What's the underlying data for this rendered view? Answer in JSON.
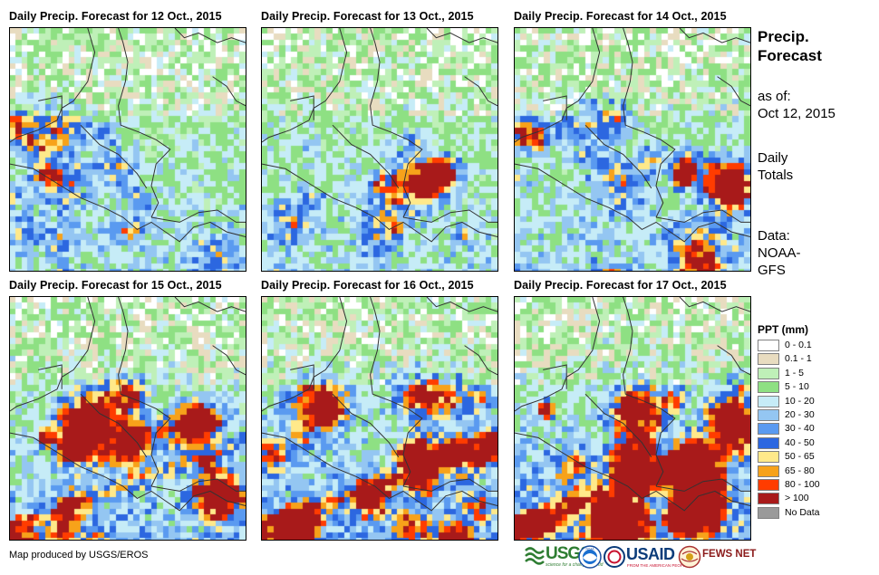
{
  "panels": [
    {
      "title": "Daily Precip. Forecast for 12 Oct., 2015",
      "intensity": 0.25,
      "seed": 12
    },
    {
      "title": "Daily Precip. Forecast for 13 Oct., 2015",
      "intensity": 0.2,
      "seed": 13
    },
    {
      "title": "Daily Precip. Forecast for 14 Oct., 2015",
      "intensity": 0.4,
      "seed": 14
    },
    {
      "title": "Daily Precip. Forecast for 15 Oct., 2015",
      "intensity": 0.6,
      "seed": 15
    },
    {
      "title": "Daily Precip. Forecast for 16 Oct., 2015",
      "intensity": 0.8,
      "seed": 16
    },
    {
      "title": "Daily Precip. Forecast for 17 Oct., 2015",
      "intensity": 1.0,
      "seed": 17
    }
  ],
  "sidebar": {
    "title_line1": "Precip.",
    "title_line2": "Forecast",
    "asof_line1": "as of:",
    "asof_line2": "Oct 12, 2015",
    "totals_line1": "Daily",
    "totals_line2": "Totals",
    "source_line1": "Data:",
    "source_line2": "NOAA-",
    "source_line3": "GFS"
  },
  "legend": {
    "title": "PPT (mm)",
    "items": [
      {
        "label": "0 - 0.1",
        "color": "#ffffff"
      },
      {
        "label": "0.1 - 1",
        "color": "#e8dcc0"
      },
      {
        "label": "1 - 5",
        "color": "#bff0b8"
      },
      {
        "label": "5 - 10",
        "color": "#8ee083"
      },
      {
        "label": "10 - 20",
        "color": "#c6ecf7"
      },
      {
        "label": "20 - 30",
        "color": "#94c6f2"
      },
      {
        "label": "30 - 40",
        "color": "#5a9af0"
      },
      {
        "label": "40 - 50",
        "color": "#2c67e0"
      },
      {
        "label": "50 - 65",
        "color": "#ffe98a"
      },
      {
        "label": "65 - 80",
        "color": "#f7a21a"
      },
      {
        "label": "80 - 100",
        "color": "#ff3c00"
      },
      {
        "label": "> 100",
        "color": "#a81a1a"
      },
      {
        "label": "No Data",
        "color": "#9a9a9a"
      }
    ]
  },
  "credit": "Map produced by USGS/EROS",
  "logos": {
    "usgs": "USGS",
    "usgs_tagline": "science for a changing world",
    "noaa": "NOAA",
    "usaid": "USAID",
    "usaid_tagline": "FROM THE AMERICAN PEOPLE",
    "fewsnet": "FEWS NET"
  }
}
